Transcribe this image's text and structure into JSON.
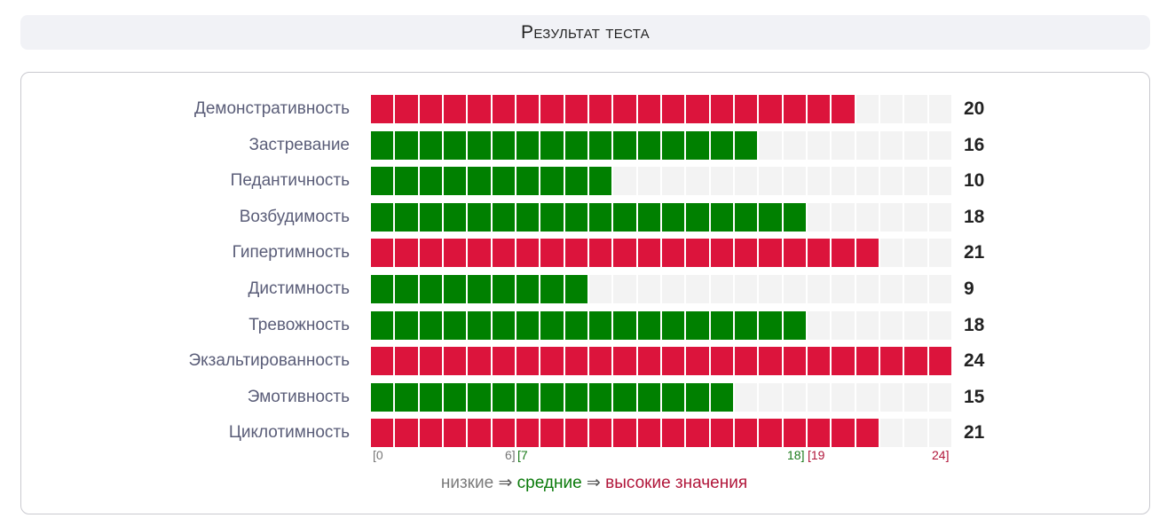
{
  "header": {
    "title": "Результат теста"
  },
  "chart_data": {
    "type": "bar",
    "orientation": "horizontal",
    "xlim": [
      0,
      24
    ],
    "categories": [
      "Демонстративность",
      "Застревание",
      "Педантичность",
      "Возбудимость",
      "Гипертимность",
      "Дистимность",
      "Тревожность",
      "Экзальтированность",
      "Эмотивность",
      "Циклотимность"
    ],
    "values": [
      20,
      16,
      10,
      18,
      21,
      9,
      18,
      24,
      15,
      21
    ],
    "value_labels": [
      "20",
      "16",
      "10",
      "18",
      "21",
      "9",
      "18",
      "24",
      "15",
      "21"
    ],
    "colors": {
      "high": "#dc143c",
      "medium": "#008000",
      "empty": "#f3f3f3"
    },
    "ticks": [
      {
        "label": "[0",
        "color": "gray"
      },
      {
        "label": "6]",
        "color": "gray"
      },
      {
        "label": "[7",
        "color": "green"
      },
      {
        "label": "18]",
        "color": "green"
      },
      {
        "label": "[19",
        "color": "red"
      },
      {
        "label": "24]",
        "color": "red"
      }
    ],
    "legend": {
      "low": "низкие",
      "arrow": "⇒",
      "medium": "средние",
      "high": "высокие значения"
    }
  }
}
